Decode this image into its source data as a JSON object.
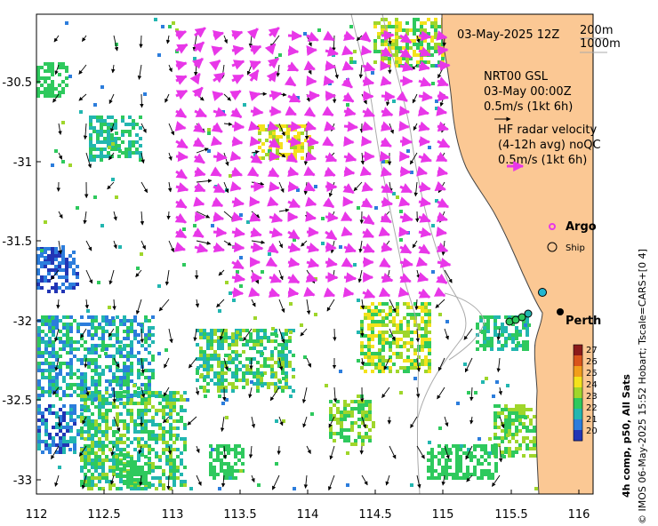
{
  "map": {
    "date_label": "03-May-2025 12Z",
    "depth_legend": [
      "200m",
      "1000m"
    ],
    "gsl_block": [
      "NRT00 GSL",
      "03-May 00:00Z",
      "0.5m/s (1kt 6h)"
    ],
    "hf_block": [
      "HF radar velocity",
      "(4-12h avg) noQC",
      "0.5m/s (1kt 6h)"
    ],
    "argo_label": "Argo",
    "ship_label": "Ship",
    "city_label": "Perth",
    "side_caption": "© IMOS 06-May-2025 15:52 Hobart; Tscale=CARS+[0 4]",
    "colorbar_caption": "4h comp, p50, All Sats",
    "colorbar_ticks": [
      "27",
      "26",
      "25",
      "24",
      "23",
      "22",
      "21",
      "20"
    ],
    "x_ticks": [
      "112",
      "112.5",
      "113",
      "113.5",
      "114",
      "114.5",
      "115",
      "115.5",
      "116"
    ],
    "y_ticks": [
      "-30.5",
      "-31",
      "-31.5",
      "-32",
      "-32.5",
      "-33"
    ],
    "colors": {
      "land": "#fbc894",
      "hf_vectors": "#e837e8",
      "gsl_vectors": "#000000",
      "argo": "#e837e8",
      "coast": "#555555",
      "isobath": "#aaaaaa"
    },
    "colorbar_colors": [
      "#8b1a1a",
      "#d9541b",
      "#f29e1b",
      "#f4e21c",
      "#9fd62b",
      "#2ec95d",
      "#22b6b0",
      "#2c7ddc",
      "#2235b5"
    ]
  }
}
